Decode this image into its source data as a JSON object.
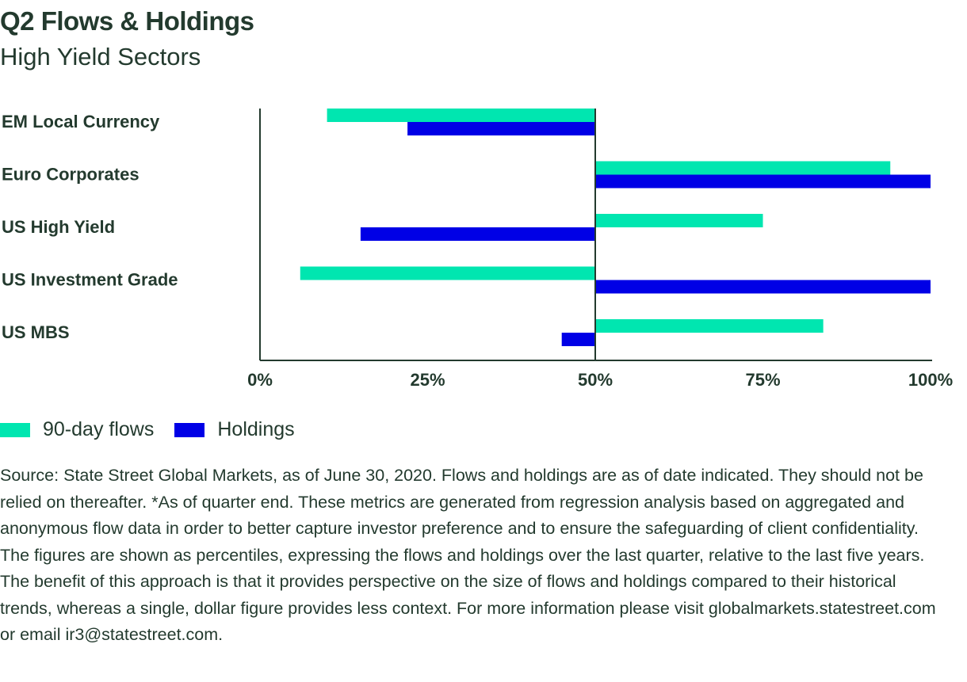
{
  "chart_data": {
    "type": "bar",
    "orientation": "horizontal",
    "title": "Q2 Flows & Holdings",
    "subtitle": "High Yield Sectors",
    "categories": [
      "EM Local Currency",
      "Euro Corporates",
      "US High Yield",
      "US Investment Grade",
      "US MBS"
    ],
    "baseline": 50,
    "series": [
      {
        "name": "90-day flows",
        "color": "#00e6b0",
        "values": [
          10,
          94,
          75,
          6,
          84
        ]
      },
      {
        "name": "Holdings",
        "color": "#0000e6",
        "values": [
          22,
          100,
          15,
          100,
          45
        ]
      }
    ],
    "xlim": [
      0,
      100
    ],
    "xticks": [
      "0%",
      "25%",
      "50%",
      "75%",
      "100%"
    ],
    "xtick_values": [
      0,
      25,
      50,
      75,
      100
    ],
    "legend_position": "bottom-left"
  },
  "source": "Source: State Street Global Markets, as of June 30, 2020. Flows and holdings are as of date indicated. They should not be relied on thereafter. *As of quarter end.  These metrics are generated from regression analysis based on aggregated and anonymous flow data in order to better capture investor preference and to ensure the safeguarding of client confidentiality. The figures are shown as percentiles, expressing the flows and holdings over the last quarter, relative to the last five years. The benefit of this approach is that it provides perspective on the size of flows and holdings compared to their historical trends, whereas a single, dollar figure provides less context. For more information please visit globalmarkets.statestreet.com or email ir3@statestreet.com."
}
